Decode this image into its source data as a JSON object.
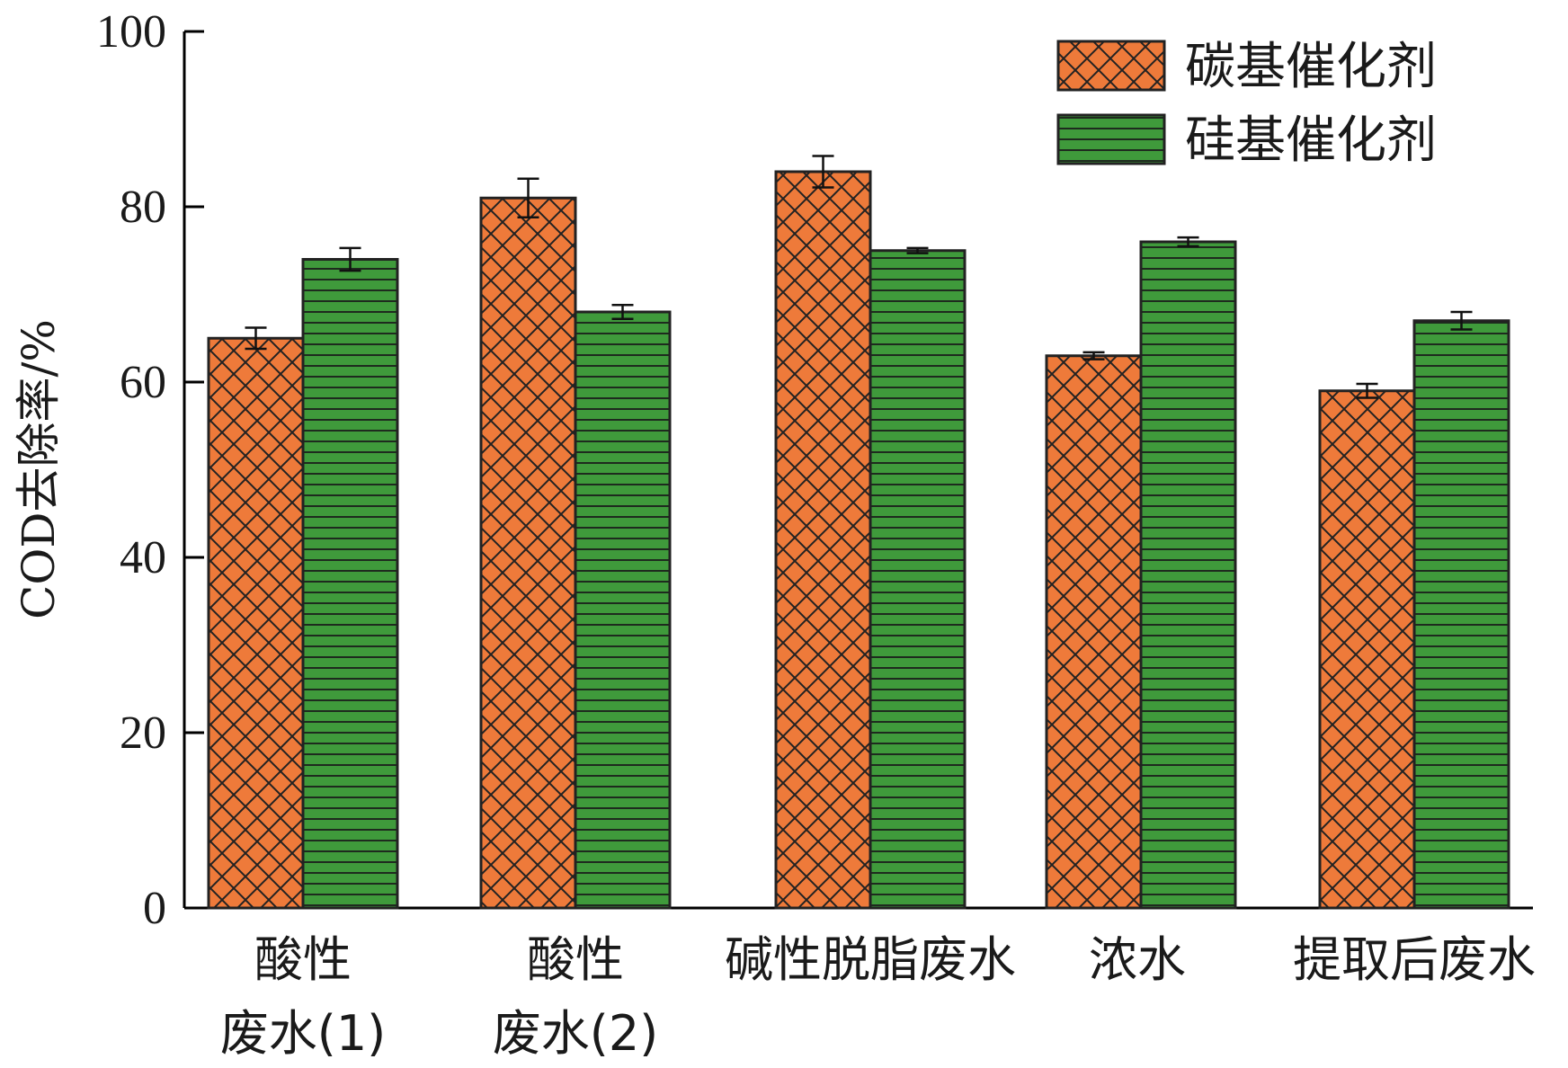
{
  "chart_data": {
    "type": "bar",
    "title": "",
    "xlabel": "",
    "ylabel": "COD去除率/%",
    "ylim": [
      0,
      100
    ],
    "yticks": [
      "0",
      "20",
      "40",
      "60",
      "80",
      "100"
    ],
    "grid": false,
    "legend_position": "top-right",
    "categories": [
      [
        "酸性",
        "废水(1)"
      ],
      [
        "酸性",
        "废水(2)"
      ],
      [
        "碱性脱脂废水"
      ],
      [
        "浓水"
      ],
      [
        "提取后废水"
      ]
    ],
    "series": [
      {
        "name": "碳基催化剂",
        "color": "#ee7a3a",
        "pattern": "crosshatch",
        "values": [
          65,
          81,
          84,
          63,
          59
        ],
        "errors": [
          1.2,
          2.2,
          1.8,
          0.4,
          0.8
        ]
      },
      {
        "name": "硅基催化剂",
        "color": "#3f9a3b",
        "pattern": "horizontal-lines",
        "values": [
          74,
          68,
          75,
          76,
          67
        ],
        "errors": [
          1.3,
          0.8,
          0.3,
          0.5,
          1.0
        ]
      }
    ]
  }
}
